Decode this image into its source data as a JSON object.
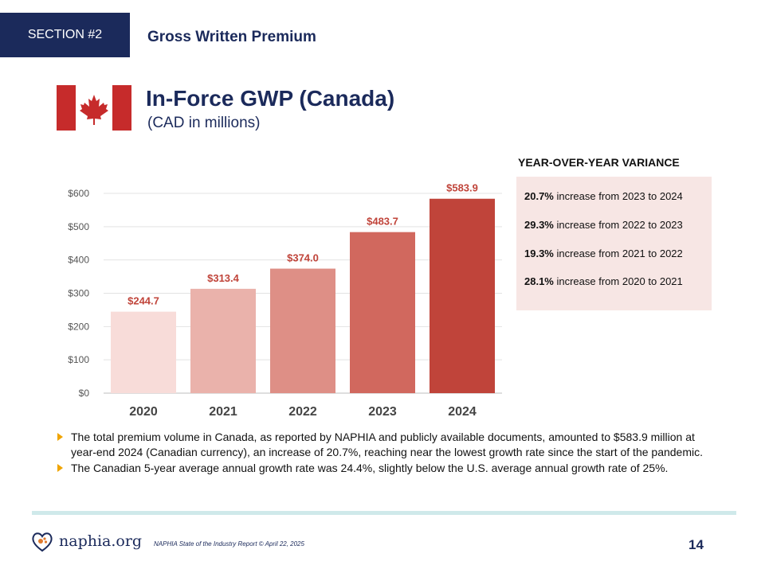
{
  "header": {
    "section_label": "SECTION #2",
    "section_title": "Gross Written Premium",
    "title": "In-Force GWP (Canada)",
    "subtitle": "(CAD in millions)",
    "flag_icon": "canada-flag-icon"
  },
  "chart_data": {
    "type": "bar",
    "categories": [
      "2020",
      "2021",
      "2022",
      "2023",
      "2024"
    ],
    "values": [
      244.7,
      313.4,
      374.0,
      483.7,
      583.9
    ],
    "data_labels": [
      "$244.7",
      "$313.4",
      "$374.0",
      "$483.7",
      "$583.9"
    ],
    "bar_colors": [
      "#f8dcd9",
      "#eab2ab",
      "#de8f86",
      "#d1685e",
      "#c0443a"
    ],
    "label_color": "#c0443a",
    "yticks": [
      "$0",
      "$100",
      "$200",
      "$300",
      "$400",
      "$500",
      "$600"
    ],
    "ytick_values": [
      0,
      100,
      200,
      300,
      400,
      500,
      600
    ],
    "ylim": [
      0,
      600
    ],
    "grid": true,
    "legend": "none"
  },
  "variance": {
    "heading": "YEAR-OVER-YEAR VARIANCE",
    "items": [
      {
        "pct": "20.7%",
        "text": " increase from 2023 to 2024"
      },
      {
        "pct": "29.3%",
        "text": " increase from 2022 to 2023"
      },
      {
        "pct": "19.3%",
        "text": " increase from 2021 to 2022"
      },
      {
        "pct": "28.1%",
        "text": " increase from 2020 to 2021"
      }
    ]
  },
  "bullets": [
    "The total premium volume in Canada, as reported by NAPHIA and publicly available documents, amounted to $583.9 million at year-end 2024 (Canadian currency), an increase of 20.7%, reaching near the lowest growth rate since the start of the pandemic.",
    "The Canadian 5-year average annual growth rate was 24.4%, slightly below the U.S. average annual growth rate of 25%."
  ],
  "footer": {
    "logo_text": "naphia.org",
    "logo_icon": "heart-paw-icon",
    "note": "NAPHIA State of the Industry Report © April 22, 2025",
    "page_number": "14"
  }
}
